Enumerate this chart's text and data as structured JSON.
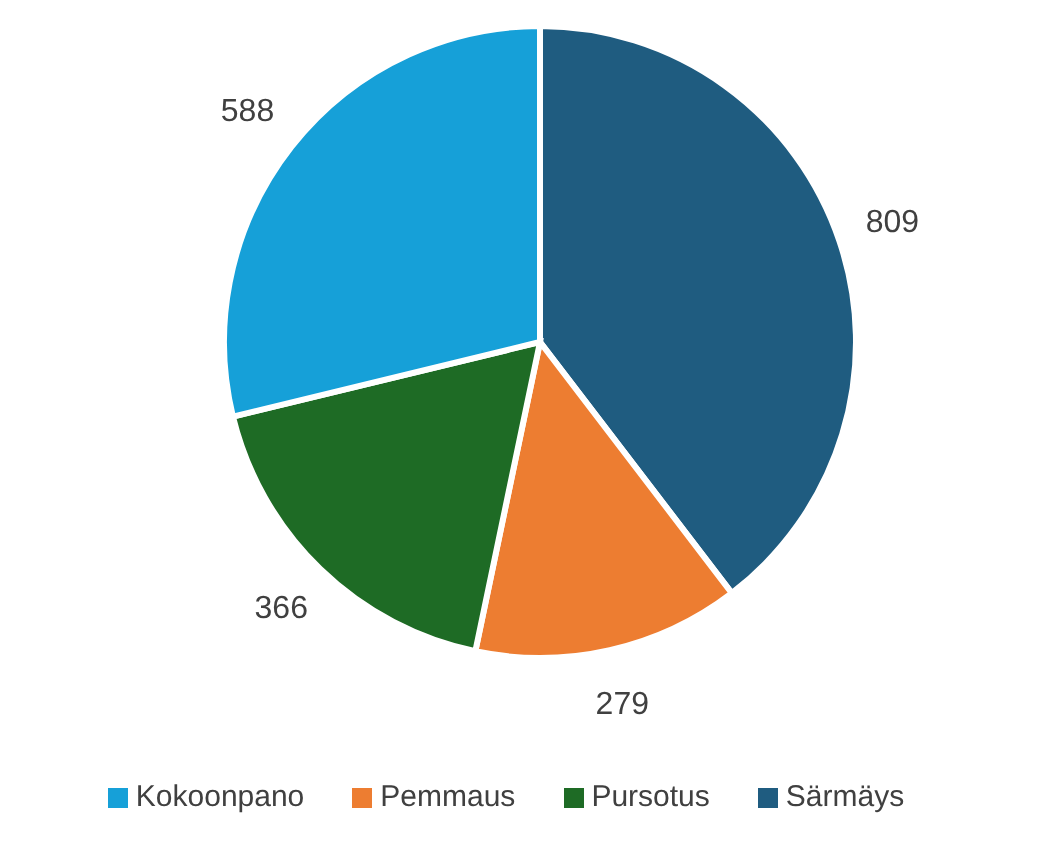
{
  "chart_data": {
    "type": "pie",
    "categories": [
      "Särmäys",
      "Pemmaus",
      "Pursotus",
      "Kokoonpano"
    ],
    "values": [
      809,
      279,
      366,
      588
    ],
    "colors": [
      "#1f5c80",
      "#ed7d31",
      "#1e6b25",
      "#16a0d8"
    ],
    "data_labels": true,
    "legend": "bottom"
  }
}
